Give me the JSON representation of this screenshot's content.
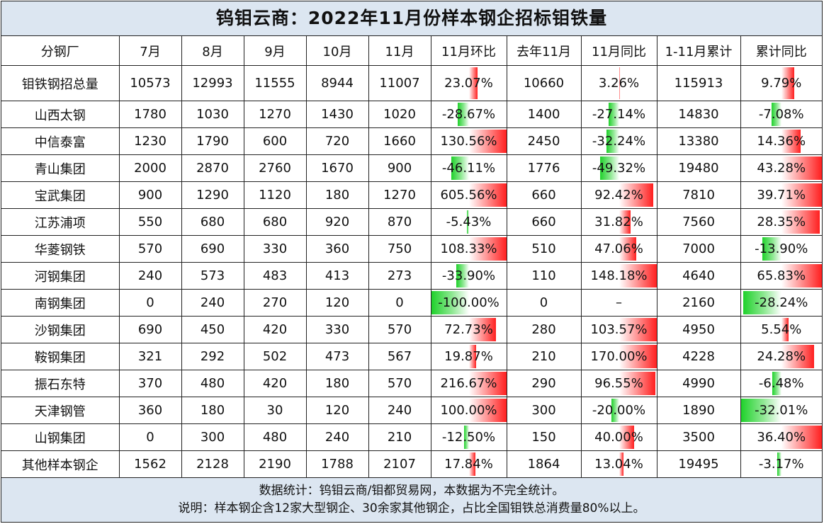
{
  "title": "钨钼云商：2022年11月份样本钢企招标钼铁量",
  "colors": {
    "header_bg": "#dce6f1",
    "positive_bar": "#ff1f1f",
    "negative_bar": "#1fd12b"
  },
  "table": {
    "headers": [
      "分钢厂",
      "7月",
      "8月",
      "9月",
      "10月",
      "11月",
      "11月环比",
      "去年11月",
      "11月同比",
      "1-11月累计",
      "累计同比"
    ],
    "rows": [
      {
        "name": "钼铁钢招总量",
        "jul": "10573",
        "aug": "12993",
        "sep": "11555",
        "oct": "8944",
        "nov": "11007",
        "mom": "23.07%",
        "mom_v": 23.07,
        "ly": "10660",
        "yoy": "3.26%",
        "yoy_v": 3.26,
        "ytd": "115913",
        "ytd_yoy": "9.79%",
        "ytd_yoy_v": 9.79
      },
      {
        "name": "山西太钢",
        "jul": "1780",
        "aug": "1030",
        "sep": "1270",
        "oct": "1430",
        "nov": "1020",
        "mom": "-28.67%",
        "mom_v": -28.67,
        "ly": "1400",
        "yoy": "-27.14%",
        "yoy_v": -27.14,
        "ytd": "14830",
        "ytd_yoy": "-7.08%",
        "ytd_yoy_v": -7.08
      },
      {
        "name": "中信泰富",
        "jul": "1230",
        "aug": "1790",
        "sep": "600",
        "oct": "720",
        "nov": "1660",
        "mom": "130.56%",
        "mom_v": 130.56,
        "ly": "2450",
        "yoy": "-32.24%",
        "yoy_v": -32.24,
        "ytd": "13380",
        "ytd_yoy": "14.36%",
        "ytd_yoy_v": 14.36
      },
      {
        "name": "青山集团",
        "jul": "2000",
        "aug": "2870",
        "sep": "2760",
        "oct": "1670",
        "nov": "900",
        "mom": "-46.11%",
        "mom_v": -46.11,
        "ly": "1776",
        "yoy": "-49.32%",
        "yoy_v": -49.32,
        "ytd": "19480",
        "ytd_yoy": "43.28%",
        "ytd_yoy_v": 43.28
      },
      {
        "name": "宝武集团",
        "jul": "900",
        "aug": "1290",
        "sep": "1120",
        "oct": "180",
        "nov": "1270",
        "mom": "605.56%",
        "mom_v": 605.56,
        "ly": "660",
        "yoy": "92.42%",
        "yoy_v": 92.42,
        "ytd": "7810",
        "ytd_yoy": "39.71%",
        "ytd_yoy_v": 39.71
      },
      {
        "name": "江苏浦项",
        "jul": "550",
        "aug": "680",
        "sep": "680",
        "oct": "920",
        "nov": "870",
        "mom": "-5.43%",
        "mom_v": -5.43,
        "ly": "660",
        "yoy": "31.82%",
        "yoy_v": 31.82,
        "ytd": "7560",
        "ytd_yoy": "28.35%",
        "ytd_yoy_v": 28.35
      },
      {
        "name": "华菱钢铁",
        "jul": "570",
        "aug": "690",
        "sep": "330",
        "oct": "360",
        "nov": "750",
        "mom": "108.33%",
        "mom_v": 108.33,
        "ly": "510",
        "yoy": "47.06%",
        "yoy_v": 47.06,
        "ytd": "7000",
        "ytd_yoy": "-13.90%",
        "ytd_yoy_v": -13.9
      },
      {
        "name": "河钢集团",
        "jul": "240",
        "aug": "573",
        "sep": "483",
        "oct": "413",
        "nov": "273",
        "mom": "-33.90%",
        "mom_v": -33.9,
        "ly": "110",
        "yoy": "148.18%",
        "yoy_v": 148.18,
        "ytd": "4640",
        "ytd_yoy": "65.83%",
        "ytd_yoy_v": 65.83
      },
      {
        "name": "南钢集团",
        "jul": "0",
        "aug": "240",
        "sep": "270",
        "oct": "120",
        "nov": "0",
        "mom": "-100.00%",
        "mom_v": -100.0,
        "ly": "0",
        "yoy": "–",
        "yoy_v": null,
        "ytd": "2160",
        "ytd_yoy": "-28.24%",
        "ytd_yoy_v": -28.24
      },
      {
        "name": "沙钢集团",
        "jul": "690",
        "aug": "450",
        "sep": "420",
        "oct": "330",
        "nov": "570",
        "mom": "72.73%",
        "mom_v": 72.73,
        "ly": "280",
        "yoy": "103.57%",
        "yoy_v": 103.57,
        "ytd": "4950",
        "ytd_yoy": "5.54%",
        "ytd_yoy_v": 5.54
      },
      {
        "name": "鞍钢集团",
        "jul": "321",
        "aug": "292",
        "sep": "502",
        "oct": "473",
        "nov": "567",
        "mom": "19.87%",
        "mom_v": 19.87,
        "ly": "210",
        "yoy": "170.00%",
        "yoy_v": 170.0,
        "ytd": "4228",
        "ytd_yoy": "24.28%",
        "ytd_yoy_v": 24.28
      },
      {
        "name": "振石东特",
        "jul": "370",
        "aug": "480",
        "sep": "420",
        "oct": "180",
        "nov": "570",
        "mom": "216.67%",
        "mom_v": 216.67,
        "ly": "290",
        "yoy": "96.55%",
        "yoy_v": 96.55,
        "ytd": "4990",
        "ytd_yoy": "-6.48%",
        "ytd_yoy_v": -6.48
      },
      {
        "name": "天津钢管",
        "jul": "360",
        "aug": "180",
        "sep": "30",
        "oct": "120",
        "nov": "240",
        "mom": "100.00%",
        "mom_v": 100.0,
        "ly": "300",
        "yoy": "-20.00%",
        "yoy_v": -20.0,
        "ytd": "1890",
        "ytd_yoy": "-32.01%",
        "ytd_yoy_v": -32.01
      },
      {
        "name": "山钢集团",
        "jul": "0",
        "aug": "300",
        "sep": "480",
        "oct": "240",
        "nov": "210",
        "mom": "-12.50%",
        "mom_v": -12.5,
        "ly": "150",
        "yoy": "40.00%",
        "yoy_v": 40.0,
        "ytd": "3500",
        "ytd_yoy": "36.40%",
        "ytd_yoy_v": 36.4
      },
      {
        "name": "其他样本钢企",
        "jul": "1562",
        "aug": "2128",
        "sep": "2190",
        "oct": "1788",
        "nov": "2107",
        "mom": "17.84%",
        "mom_v": 17.84,
        "ly": "1864",
        "yoy": "13.04%",
        "yoy_v": 13.04,
        "ytd": "19495",
        "ytd_yoy": "-3.17%",
        "ytd_yoy_v": -3.17
      }
    ]
  },
  "footer": {
    "line1": "数据统计：钨钼云商/钼都贸易网，本数据为不完全统计。",
    "line2": "说明：样本钢企含12家大型钢企、30余家其他钢企，占比全国钼铁总消费量80%以上。"
  }
}
